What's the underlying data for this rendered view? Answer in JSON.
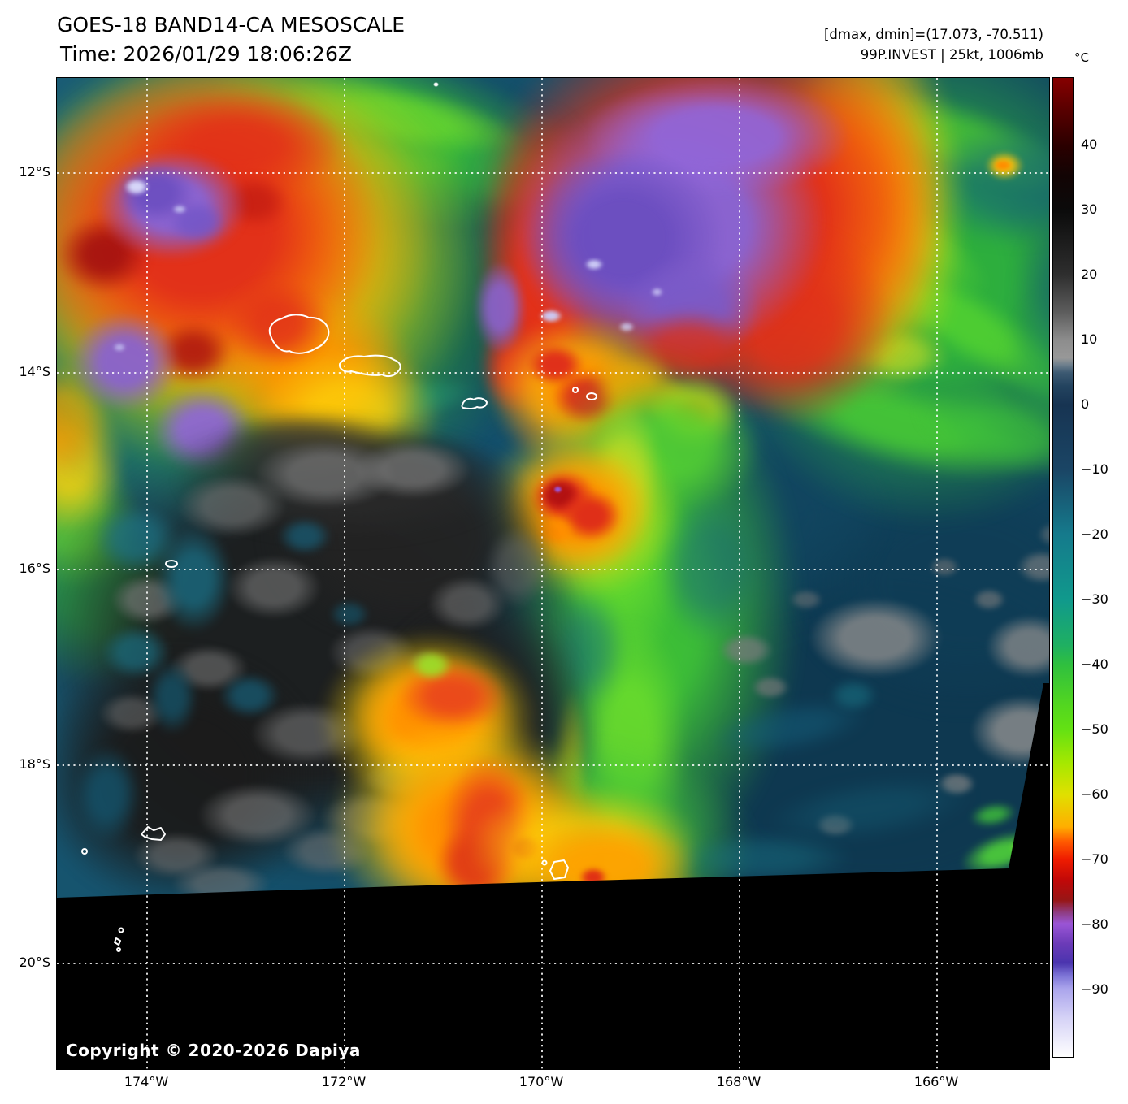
{
  "header": {
    "title": "GOES-18 BAND14-CA MESOSCALE",
    "time": "Time: 2026/01/29 18:06:26Z",
    "range_info": "[dmax, dmin]=(17.073, -70.511)",
    "storm_info": "99P.INVEST | 25kt, 1006mb"
  },
  "colorbar": {
    "unit_label": "°C",
    "tick_labels": [
      "40",
      "30",
      "20",
      "10",
      "0",
      "−10",
      "−20",
      "−30",
      "−40",
      "−50",
      "−60",
      "−70",
      "−80",
      "−90"
    ]
  },
  "axes": {
    "latitude_tick_labels": [
      "12°S",
      "14°S",
      "16°S",
      "18°S",
      "20°S"
    ],
    "longitude_tick_labels": [
      "174°W",
      "172°W",
      "170°W",
      "168°W",
      "166°W"
    ]
  },
  "watermark": {
    "copyright": "Copyright © 2020-2026 Dapiya"
  },
  "palette": {
    "coldest_white": "#ffffff",
    "very_cold_lavender": "#aaa4ec",
    "cold_purple": "#8a63cf",
    "cold_red": "#e23119",
    "cold_orange": "#ff9100",
    "cold_yellow": "#ffd60a",
    "cool_green": "#3fc436",
    "mid_teal": "#157a8c",
    "warm_navy": "#173452",
    "warm_gray": "#8d8d8d",
    "hot_black": "#0b0b0b",
    "no_data_black": "#000000"
  }
}
